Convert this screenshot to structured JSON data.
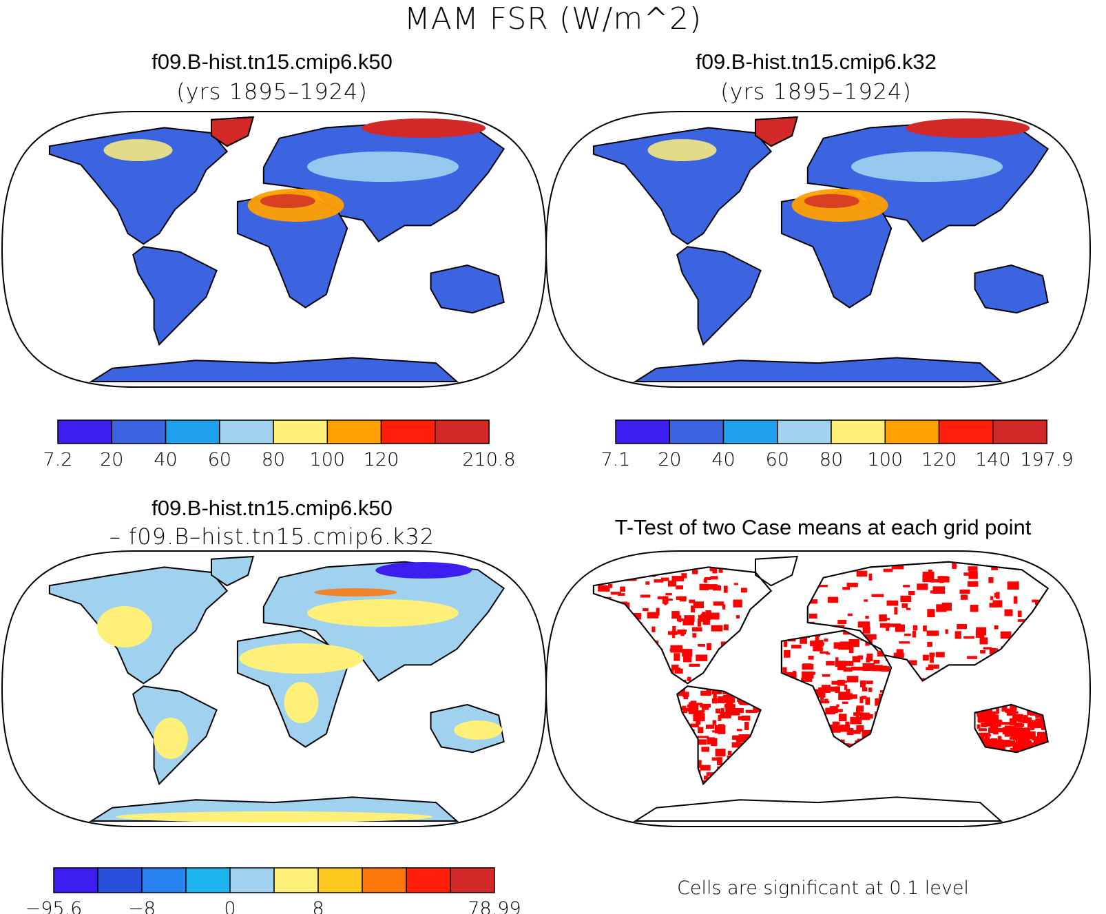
{
  "figure": {
    "title": "MAM FSR (W/m^2)",
    "panels": [
      {
        "id": "case1",
        "title_line1": "f09.B-hist.tn15.cmip6.k50",
        "title_line2": "(yrs 1895–1924)",
        "colorbar": {
          "colors": [
            "#3c1ff0",
            "#3c64e0",
            "#1ea0ee",
            "#a0d2f0",
            "#fff07a",
            "#ffa000",
            "#ff1e0a",
            "#d22828"
          ],
          "labels": [
            "7.2",
            "20",
            "40",
            "60",
            "80",
            "100",
            "120",
            "",
            "210.8"
          ]
        }
      },
      {
        "id": "case2",
        "title_line1": "f09.B-hist.tn15.cmip6.k32",
        "title_line2": "(yrs 1895–1924)",
        "colorbar": {
          "colors": [
            "#3c1ff0",
            "#3c64e0",
            "#1ea0ee",
            "#a0d2f0",
            "#fff07a",
            "#ffa000",
            "#ff1e0a",
            "#d22828"
          ],
          "labels": [
            "7.1",
            "20",
            "40",
            "60",
            "80",
            "100",
            "120",
            "140",
            "197.9"
          ]
        }
      },
      {
        "id": "diff",
        "title_line1": "f09.B-hist.tn15.cmip6.k50",
        "title_line2": "– f09.B–hist.tn15.cmip6.k32",
        "colorbar": {
          "colors": [
            "#3c1ff0",
            "#2850dc",
            "#2882f0",
            "#1eb4f0",
            "#a0d2f0",
            "#fff07a",
            "#ffc81e",
            "#ff780a",
            "#ff1e0a",
            "#d22828"
          ],
          "labels": [
            "−95.6",
            "",
            "−8",
            "",
            "0",
            "",
            "8",
            "",
            "",
            "",
            "78.99"
          ]
        }
      },
      {
        "id": "ttest",
        "title_line1": "T-Test of two Case means at each grid point",
        "footnote": "Cells are significant at 0.1 level"
      }
    ],
    "palette": {
      "land_low": "#3c64e0",
      "land_mid": "#a0d2f0",
      "desert": "#ffa000",
      "arctic": "#d22828",
      "diff_pos": "#fff07a",
      "diff_neg": "#a0d2f0",
      "signif": "#ff0000"
    }
  }
}
